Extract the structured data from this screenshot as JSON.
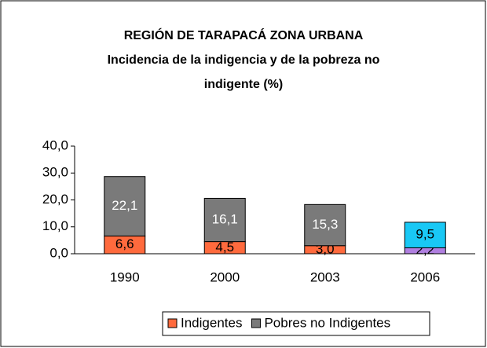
{
  "chart_data": {
    "type": "stacked_bar",
    "title": "REGIÓN DE TARAPACÁ ZONA URBANA",
    "subtitle": "Incidencia de la indigencia y de la pobreza no indigente (%)",
    "categories": [
      "1990",
      "2000",
      "2003",
      "2006"
    ],
    "series": [
      {
        "name": "Indigentes",
        "color": "#ff6a3d",
        "colors": [
          "#ff6a3d",
          "#ff6a3d",
          "#ff6a3d",
          "#b07fe0"
        ],
        "values": [
          6.6,
          4.5,
          3.0,
          2.2
        ],
        "value_labels": [
          "6,6",
          "4,5",
          "3,0",
          "2,2"
        ]
      },
      {
        "name": "Pobres no Indigentes",
        "color": "#7a7a7a",
        "colors": [
          "#7a7a7a",
          "#7a7a7a",
          "#7a7a7a",
          "#19c8f5"
        ],
        "values": [
          22.1,
          16.1,
          15.3,
          9.5
        ],
        "value_labels": [
          "22,1",
          "16,1",
          "15,3",
          "9,5"
        ]
      }
    ],
    "ylim": [
      0,
      40
    ],
    "yticks": [
      {
        "value": 0,
        "label": "0,0"
      },
      {
        "value": 10,
        "label": "10,0"
      },
      {
        "value": 20,
        "label": "20,0"
      },
      {
        "value": 30,
        "label": "30,0"
      },
      {
        "value": 40,
        "label": "40,0"
      }
    ],
    "grid": false,
    "legend": "bottom"
  }
}
